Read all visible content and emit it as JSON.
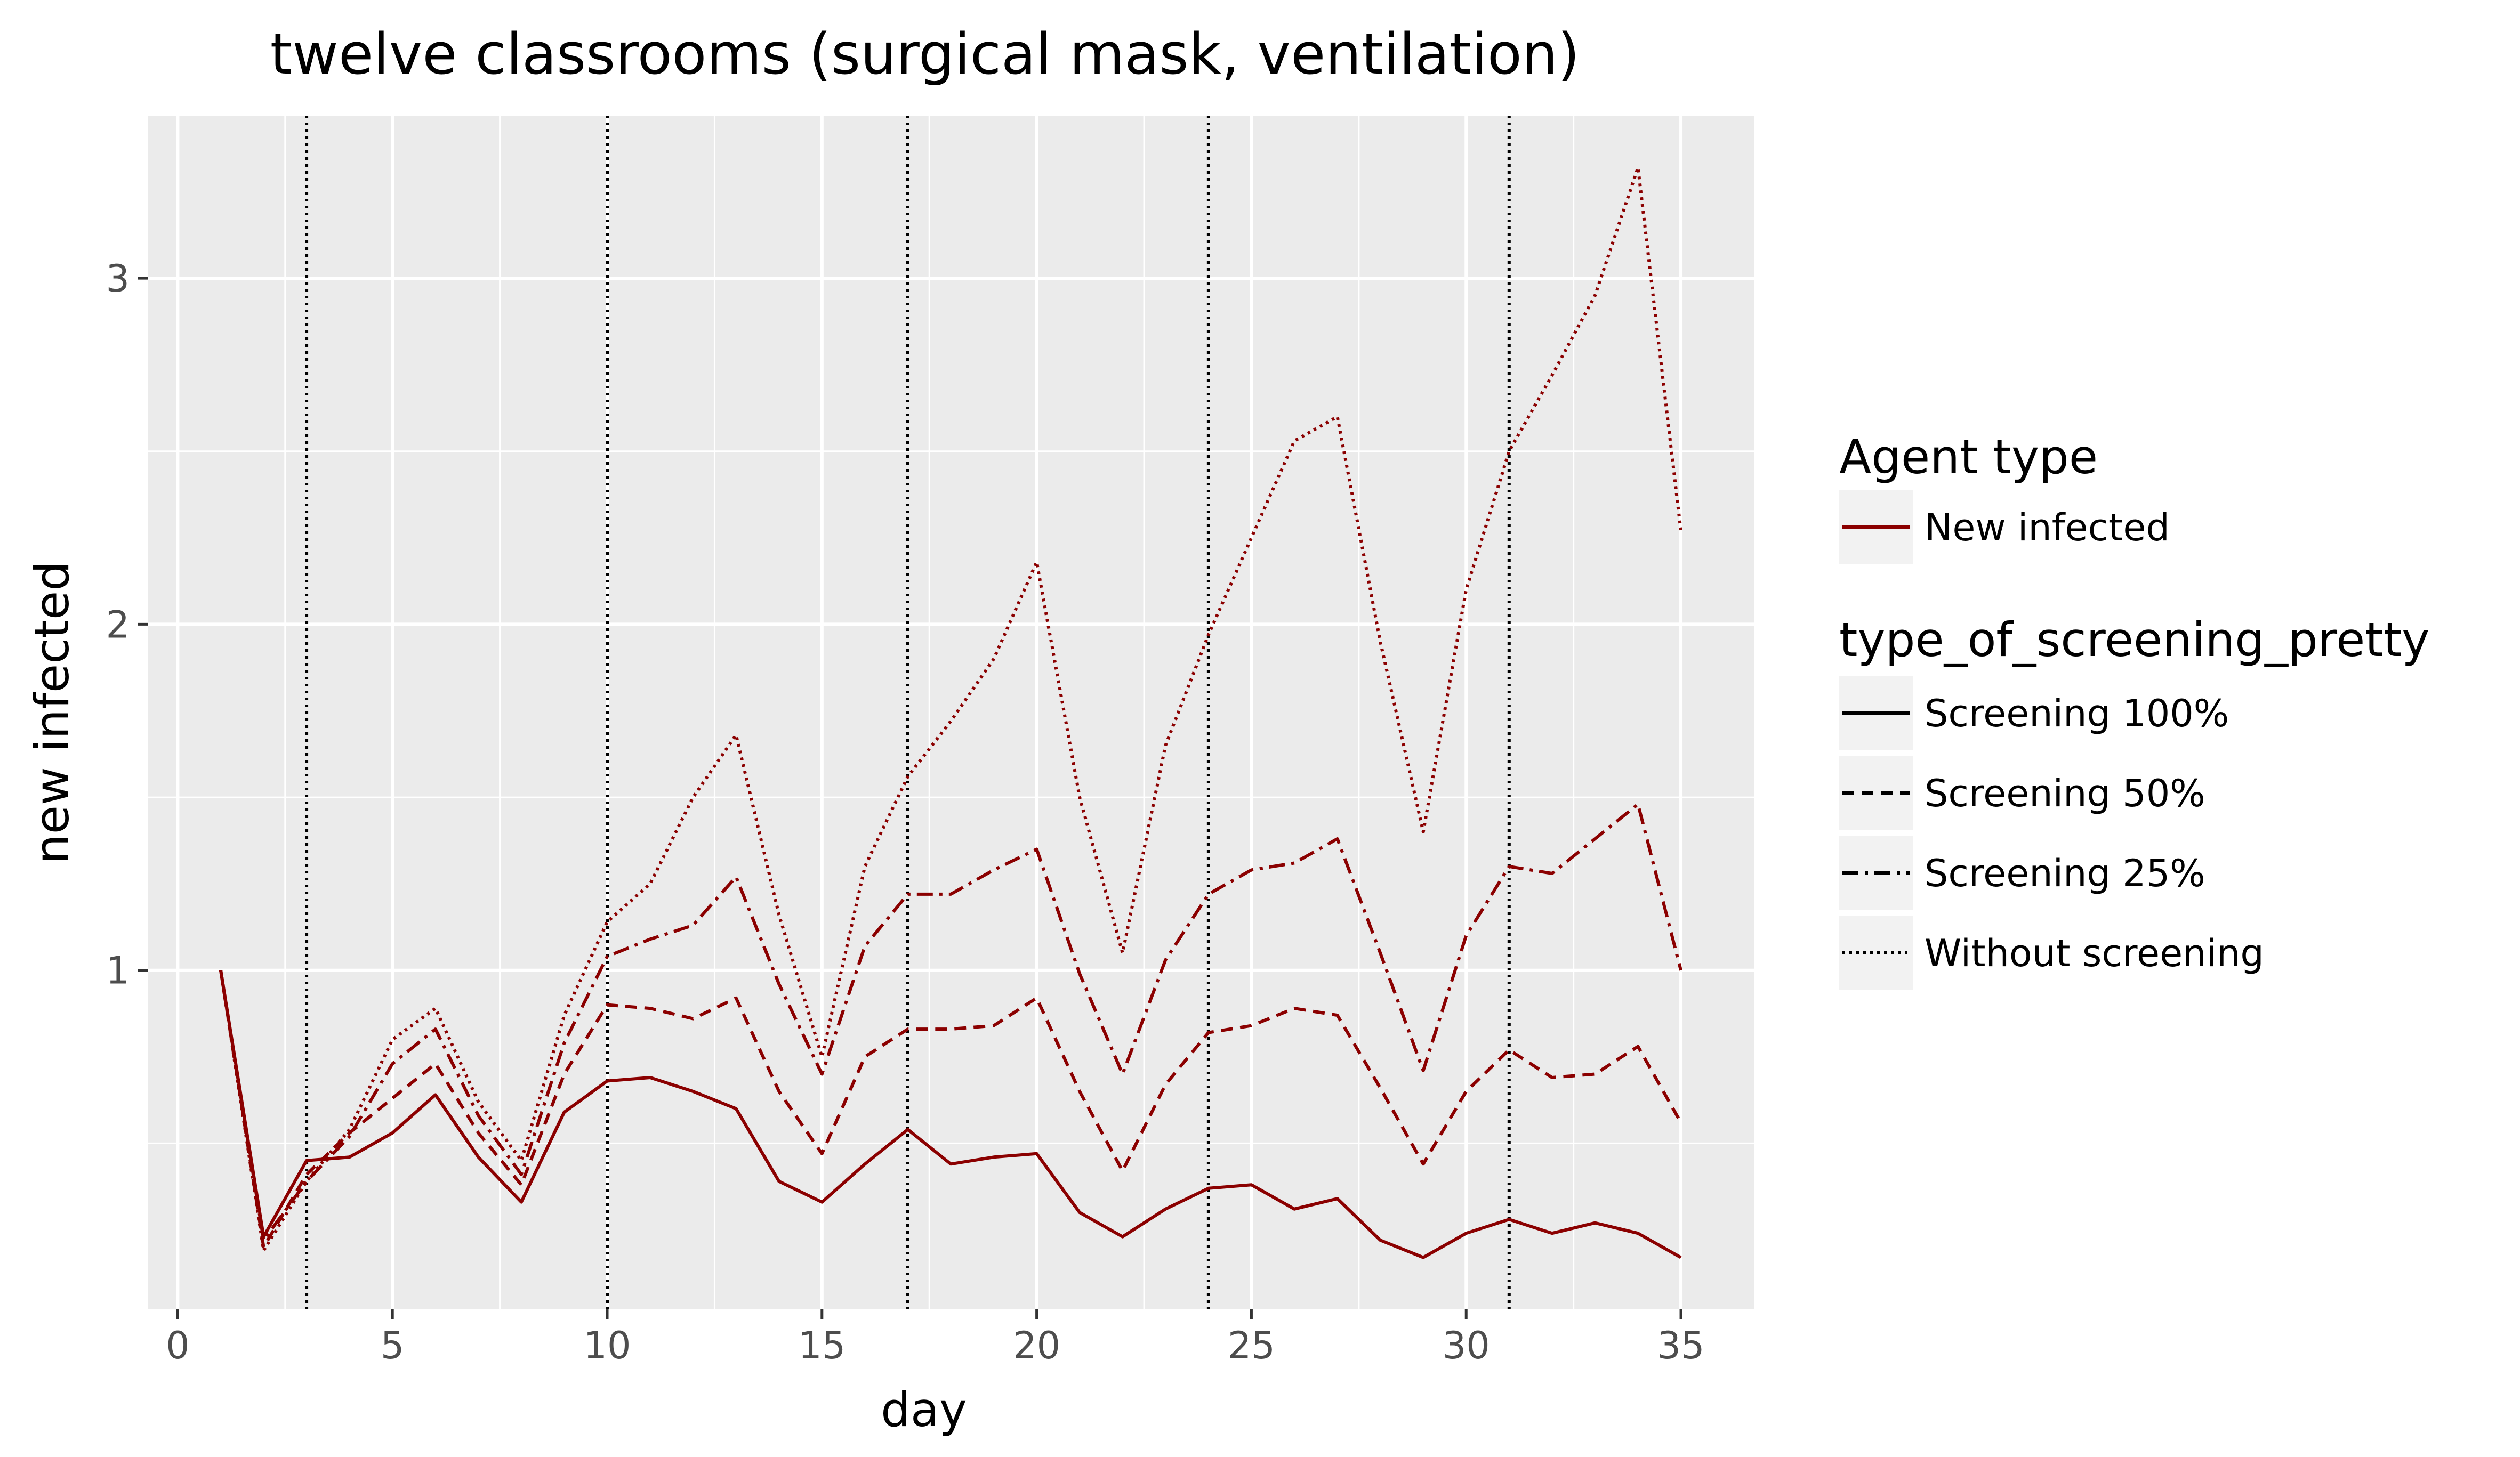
{
  "chart_data": {
    "type": "line",
    "title": "twelve classrooms (surgical mask, ventilation)",
    "xlabel": "day",
    "ylabel": "new infected",
    "xlim": [
      -0.7,
      36.7
    ],
    "ylim": [
      0.02,
      3.47
    ],
    "x_ticks": [
      0,
      5,
      10,
      15,
      20,
      25,
      30,
      35
    ],
    "y_ticks": [
      1,
      2,
      3
    ],
    "x_minor_ticks": [
      2.5,
      7.5,
      12.5,
      17.5,
      22.5,
      27.5,
      32.5
    ],
    "y_minor_ticks": [
      0.5,
      1.5,
      2.5
    ],
    "vlines": [
      3,
      10,
      17,
      24,
      31
    ],
    "x": [
      1,
      2,
      3,
      4,
      5,
      6,
      7,
      8,
      9,
      10,
      11,
      12,
      13,
      14,
      15,
      16,
      17,
      18,
      19,
      20,
      21,
      22,
      23,
      24,
      25,
      26,
      27,
      28,
      29,
      30,
      31,
      32,
      33,
      34,
      35
    ],
    "series": [
      {
        "name": "Screening 100%",
        "dash": "solid",
        "values": [
          1.0,
          0.23,
          0.45,
          0.46,
          0.53,
          0.64,
          0.46,
          0.33,
          0.59,
          0.68,
          0.69,
          0.65,
          0.6,
          0.39,
          0.33,
          0.44,
          0.54,
          0.44,
          0.46,
          0.47,
          0.3,
          0.23,
          0.31,
          0.37,
          0.38,
          0.31,
          0.34,
          0.22,
          0.17,
          0.24,
          0.28,
          0.24,
          0.27,
          0.24,
          0.17
        ]
      },
      {
        "name": "Screening 50%",
        "dash": "dashed",
        "values": [
          1.0,
          0.2,
          0.41,
          0.53,
          0.63,
          0.73,
          0.53,
          0.38,
          0.7,
          0.9,
          0.89,
          0.86,
          0.92,
          0.65,
          0.47,
          0.75,
          0.83,
          0.83,
          0.84,
          0.92,
          0.65,
          0.42,
          0.67,
          0.82,
          0.84,
          0.89,
          0.87,
          0.66,
          0.44,
          0.65,
          0.77,
          0.69,
          0.7,
          0.78,
          0.56
        ]
      },
      {
        "name": "Screening 25%",
        "dash": "dashdot",
        "values": [
          1.0,
          0.22,
          0.39,
          0.52,
          0.73,
          0.83,
          0.58,
          0.41,
          0.79,
          1.04,
          1.09,
          1.13,
          1.27,
          0.96,
          0.7,
          1.07,
          1.22,
          1.22,
          1.29,
          1.35,
          0.99,
          0.7,
          1.03,
          1.22,
          1.29,
          1.31,
          1.38,
          1.05,
          0.71,
          1.1,
          1.3,
          1.28,
          1.38,
          1.48,
          1.0
        ]
      },
      {
        "name": "Without screening",
        "dash": "dotted",
        "values": [
          1.0,
          0.19,
          0.39,
          0.54,
          0.8,
          0.89,
          0.62,
          0.45,
          0.87,
          1.14,
          1.25,
          1.5,
          1.68,
          1.16,
          0.75,
          1.3,
          1.56,
          1.72,
          1.9,
          2.18,
          1.5,
          1.05,
          1.65,
          1.97,
          2.25,
          2.53,
          2.6,
          1.95,
          1.4,
          2.1,
          2.5,
          2.72,
          2.95,
          3.32,
          2.27
        ]
      }
    ],
    "line_color": "#8b0000",
    "legend": {
      "placement": "right",
      "agent_title": "Agent type",
      "agent_items": [
        {
          "label": "New infected",
          "color": "#8b0000"
        }
      ],
      "screening_title": "type_of_screening_pretty",
      "screening_items": [
        {
          "label": "Screening 100%",
          "dash": "solid"
        },
        {
          "label": "Screening 50%",
          "dash": "dashed"
        },
        {
          "label": "Screening 25%",
          "dash": "dashdot"
        },
        {
          "label": "Without screening",
          "dash": "dotted"
        }
      ]
    },
    "panel_color": "#ebebeb",
    "grid_color": "#ffffff",
    "vline_color": "#000000"
  }
}
